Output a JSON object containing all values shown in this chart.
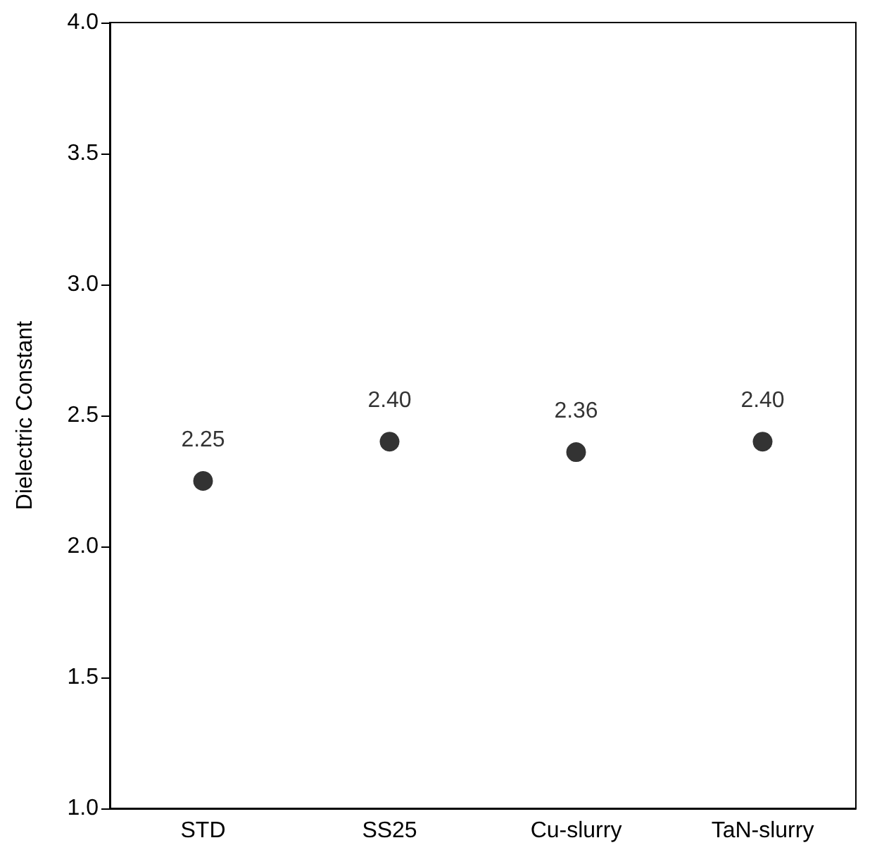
{
  "chart_data": {
    "type": "scatter",
    "ylabel": "Dielectric Constant",
    "categories": [
      "STD",
      "SS25",
      "Cu-slurry",
      "TaN-slurry"
    ],
    "values": [
      2.25,
      2.4,
      2.36,
      2.4
    ],
    "value_labels": [
      "2.25",
      "2.40",
      "2.36",
      "2.40"
    ],
    "color": "#000000",
    "marker": "circle",
    "ylim": [
      1.0,
      4.0
    ],
    "yticks": [
      {
        "value": 1.0,
        "label": "1.0"
      },
      {
        "value": 1.5,
        "label": "1.5"
      },
      {
        "value": 2.0,
        "label": "2.0"
      },
      {
        "value": 2.5,
        "label": "2.5"
      },
      {
        "value": 3.0,
        "label": "3.0"
      },
      {
        "value": 3.5,
        "label": "3.5"
      },
      {
        "value": 4.0,
        "label": "4.0"
      }
    ],
    "grid": false
  }
}
